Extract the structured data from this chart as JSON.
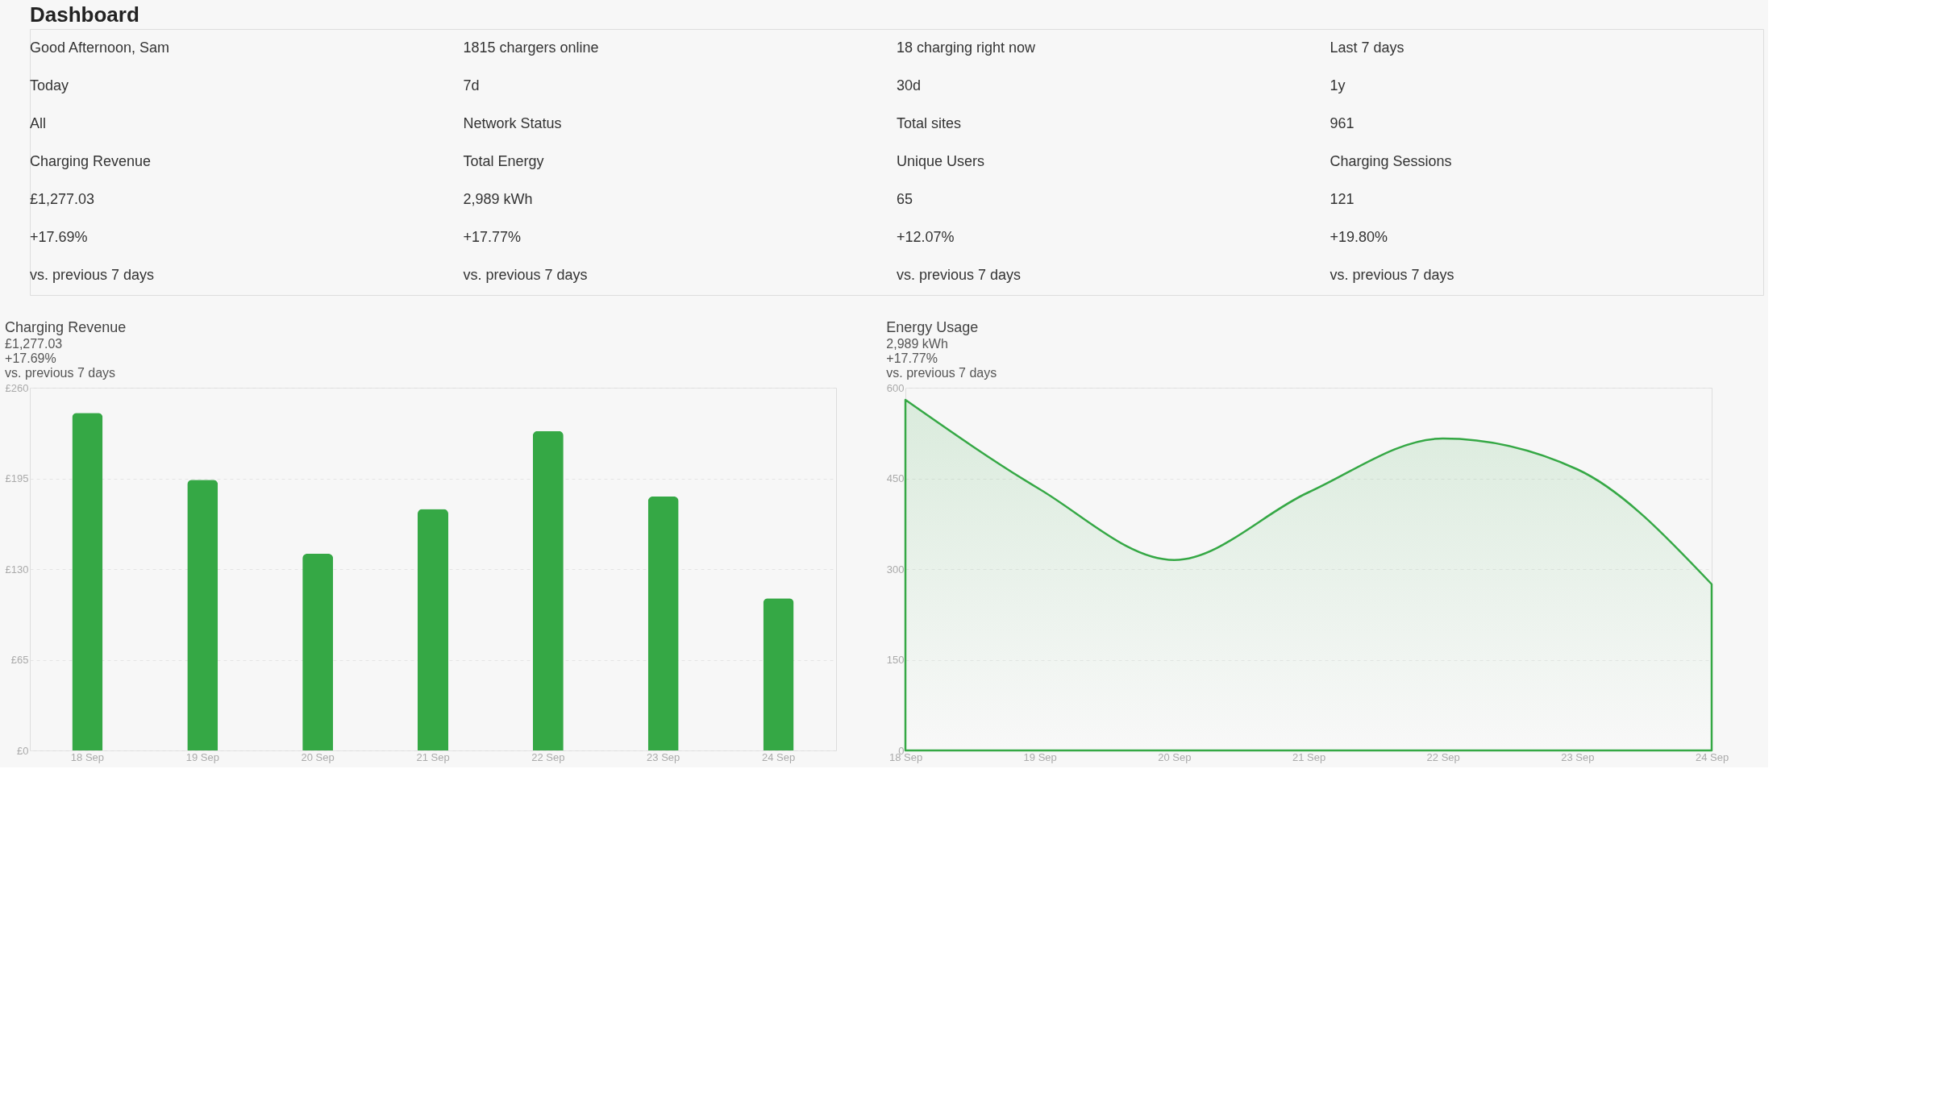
{
  "chart_data": [
    {
      "type": "other",
      "title": "Dashboard",
      "annotations": [
        "Good Afternoon, Sam",
        "1815 chargers online",
        "18 charging right now",
        "Last 7 days",
        "Today",
        "7d",
        "30d",
        "1y",
        "All",
        "Network Status",
        "Total sites",
        "961",
        "Charging Revenue",
        "Total Energy",
        "Unique Users",
        "Charging Sessions",
        "£1,277.03",
        "2,989 kWh",
        "65",
        "121",
        "+17.69%",
        "+17.77%",
        "+12.07%",
        "+19.80%",
        "vs. previous 7 days",
        "vs. previous 7 days",
        "vs. previous 7 days",
        "vs. previous 7 days"
      ]
    },
    {
      "type": "bar",
      "title": "Charging Revenue",
      "subtitle": "£1,277.03",
      "annotations": [
        "+17.69%",
        "vs. previous 7 days"
      ],
      "categories": [
        "18 Sep",
        "19 Sep",
        "20 Sep",
        "21 Sep",
        "22 Sep",
        "23 Sep",
        "24 Sep"
      ],
      "series": [
        {
          "color": "#35a845",
          "values": [
            242,
            194,
            141,
            173,
            229,
            182,
            109
          ]
        }
      ],
      "ylim": [
        0,
        260
      ],
      "yticks": [
        {
          "value": 0,
          "label": "£0"
        },
        {
          "value": 65,
          "label": "£65"
        },
        {
          "value": 130,
          "label": "£130"
        },
        {
          "value": 195,
          "label": "£195"
        },
        {
          "value": 260,
          "label": "£260"
        }
      ],
      "grid": "y"
    },
    {
      "type": "area",
      "title": "Energy Usage",
      "subtitle": "2,989 kWh",
      "annotations": [
        "+17.77%",
        "vs. previous 7 days"
      ],
      "categories": [
        "18 Sep",
        "19 Sep",
        "20 Sep",
        "21 Sep",
        "22 Sep",
        "23 Sep",
        "24 Sep"
      ],
      "series": [
        {
          "color": "#35a845",
          "values": [
            580,
            432,
            315,
            427,
            516,
            465,
            275
          ]
        }
      ],
      "ylim": [
        0,
        600
      ],
      "yticks": [
        0,
        150,
        300,
        450,
        600
      ],
      "grid": "y"
    }
  ]
}
